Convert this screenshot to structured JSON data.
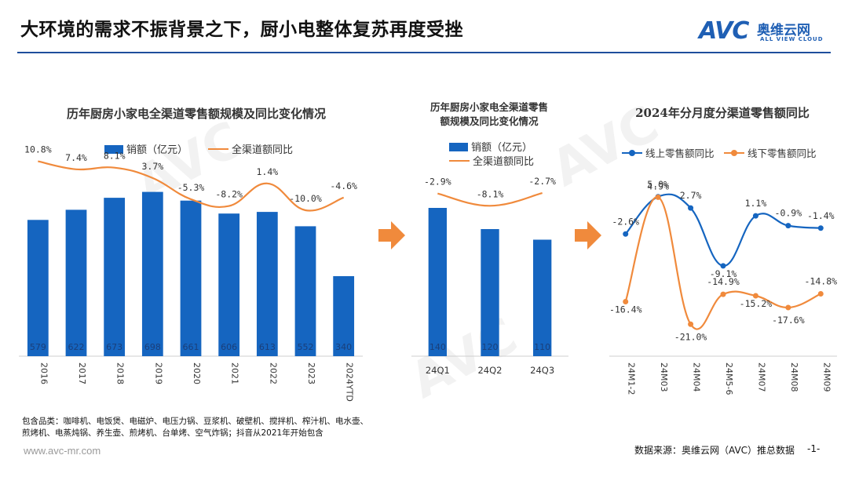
{
  "header": {
    "title": "大环境的需求不振背景之下，厨小电整体复苏再度受挫",
    "logo_mark": "AVC",
    "logo_cn": "奥维云网",
    "logo_en": "ALL VIEW CLOUD"
  },
  "colors": {
    "bar": "#1565c0",
    "yoy_line": "#f08a3c",
    "online_line": "#1565c0",
    "offline_line": "#f08a3c",
    "rule": "#1f4e9c",
    "arrow": "#f08a3c"
  },
  "arrow_icons": [
    "arrow-right-icon",
    "arrow-right-icon"
  ],
  "chart_data": [
    {
      "type": "bar",
      "title": "历年厨房小家电全渠道零售额规模及同比变化情况",
      "categories": [
        "2016",
        "2017",
        "2018",
        "2019",
        "2020",
        "2021",
        "2022",
        "2023",
        "2024YTD"
      ],
      "series": [
        {
          "name": "销额（亿元）",
          "type": "bar",
          "values": [
            579,
            622,
            673,
            698,
            661,
            606,
            613,
            552,
            340
          ]
        },
        {
          "name": "全渠道额同比",
          "type": "line",
          "values": [
            10.8,
            7.4,
            8.1,
            3.7,
            -5.3,
            -8.2,
            1.4,
            -10.0,
            -4.6
          ]
        }
      ],
      "bar_labels": [
        "579",
        "622",
        "673",
        "698",
        "661",
        "606",
        "613",
        "552",
        "340"
      ],
      "line_labels": [
        "10.8%",
        "7.4%",
        "8.1%",
        "3.7%",
        "-5.3%",
        "-8.2%",
        "1.4%",
        "-10.0%",
        "-4.6%"
      ],
      "ylim": [
        0,
        900
      ],
      "legend": [
        "销额（亿元）",
        "全渠道额同比"
      ],
      "legend_position": "top"
    },
    {
      "type": "bar",
      "title": "历年厨房小家电全渠道零售额规模及同比变化情况",
      "categories": [
        "24Q1",
        "24Q2",
        "24Q3"
      ],
      "series": [
        {
          "name": "销额（亿元）",
          "type": "bar",
          "values": [
            140,
            120,
            110
          ]
        },
        {
          "name": "全渠道额同比",
          "type": "line",
          "values": [
            -2.9,
            -8.1,
            -2.7
          ]
        }
      ],
      "bar_labels": [
        "140",
        "120",
        "110"
      ],
      "line_labels": [
        "-2.9%",
        "-8.1%",
        "-2.7%"
      ],
      "ylim": [
        0,
        200
      ],
      "legend": [
        "销额（亿元）",
        "全渠道额同比"
      ],
      "legend_position": "top"
    },
    {
      "type": "line",
      "title": "2024年分月度分渠道零售额同比",
      "categories": [
        "24M1-2",
        "24M03",
        "24M04",
        "24M5-6",
        "24M07",
        "24M08",
        "24M09"
      ],
      "series": [
        {
          "name": "线上零售额同比",
          "values": [
            -2.6,
            5.0,
            2.7,
            -9.1,
            1.1,
            -0.9,
            -1.4
          ],
          "labels": [
            "-2.6%",
            "5.0%",
            "2.7%",
            "-9.1%",
            "1.1%",
            "-0.9%",
            "-1.4%"
          ]
        },
        {
          "name": "线下零售额同比",
          "values": [
            -16.4,
            4.9,
            -21.0,
            -14.9,
            -15.2,
            -17.6,
            -14.8
          ],
          "labels": [
            "-16.4%",
            "4.9%",
            "-21.0%",
            "-14.9%",
            "-15.2%",
            "-17.6%",
            "-14.8%"
          ]
        }
      ],
      "ylim": [
        -24,
        8
      ],
      "legend": [
        "线上零售额同比",
        "线下零售额同比"
      ],
      "legend_position": "top"
    }
  ],
  "footnote": "包含品类：咖啡机、电饭煲、电磁炉、电压力锅、豆浆机、破壁机、搅拌机、榨汁机、电水壶、煎烤机、电蒸炖锅、养生壶、煎烤机、台单烤、空气炸锅；抖音从2021年开始包含",
  "footer": {
    "website": "www.avc-mr.com",
    "source": "数据来源：奥维云网（AVC）推总数据",
    "page": "-1-"
  }
}
